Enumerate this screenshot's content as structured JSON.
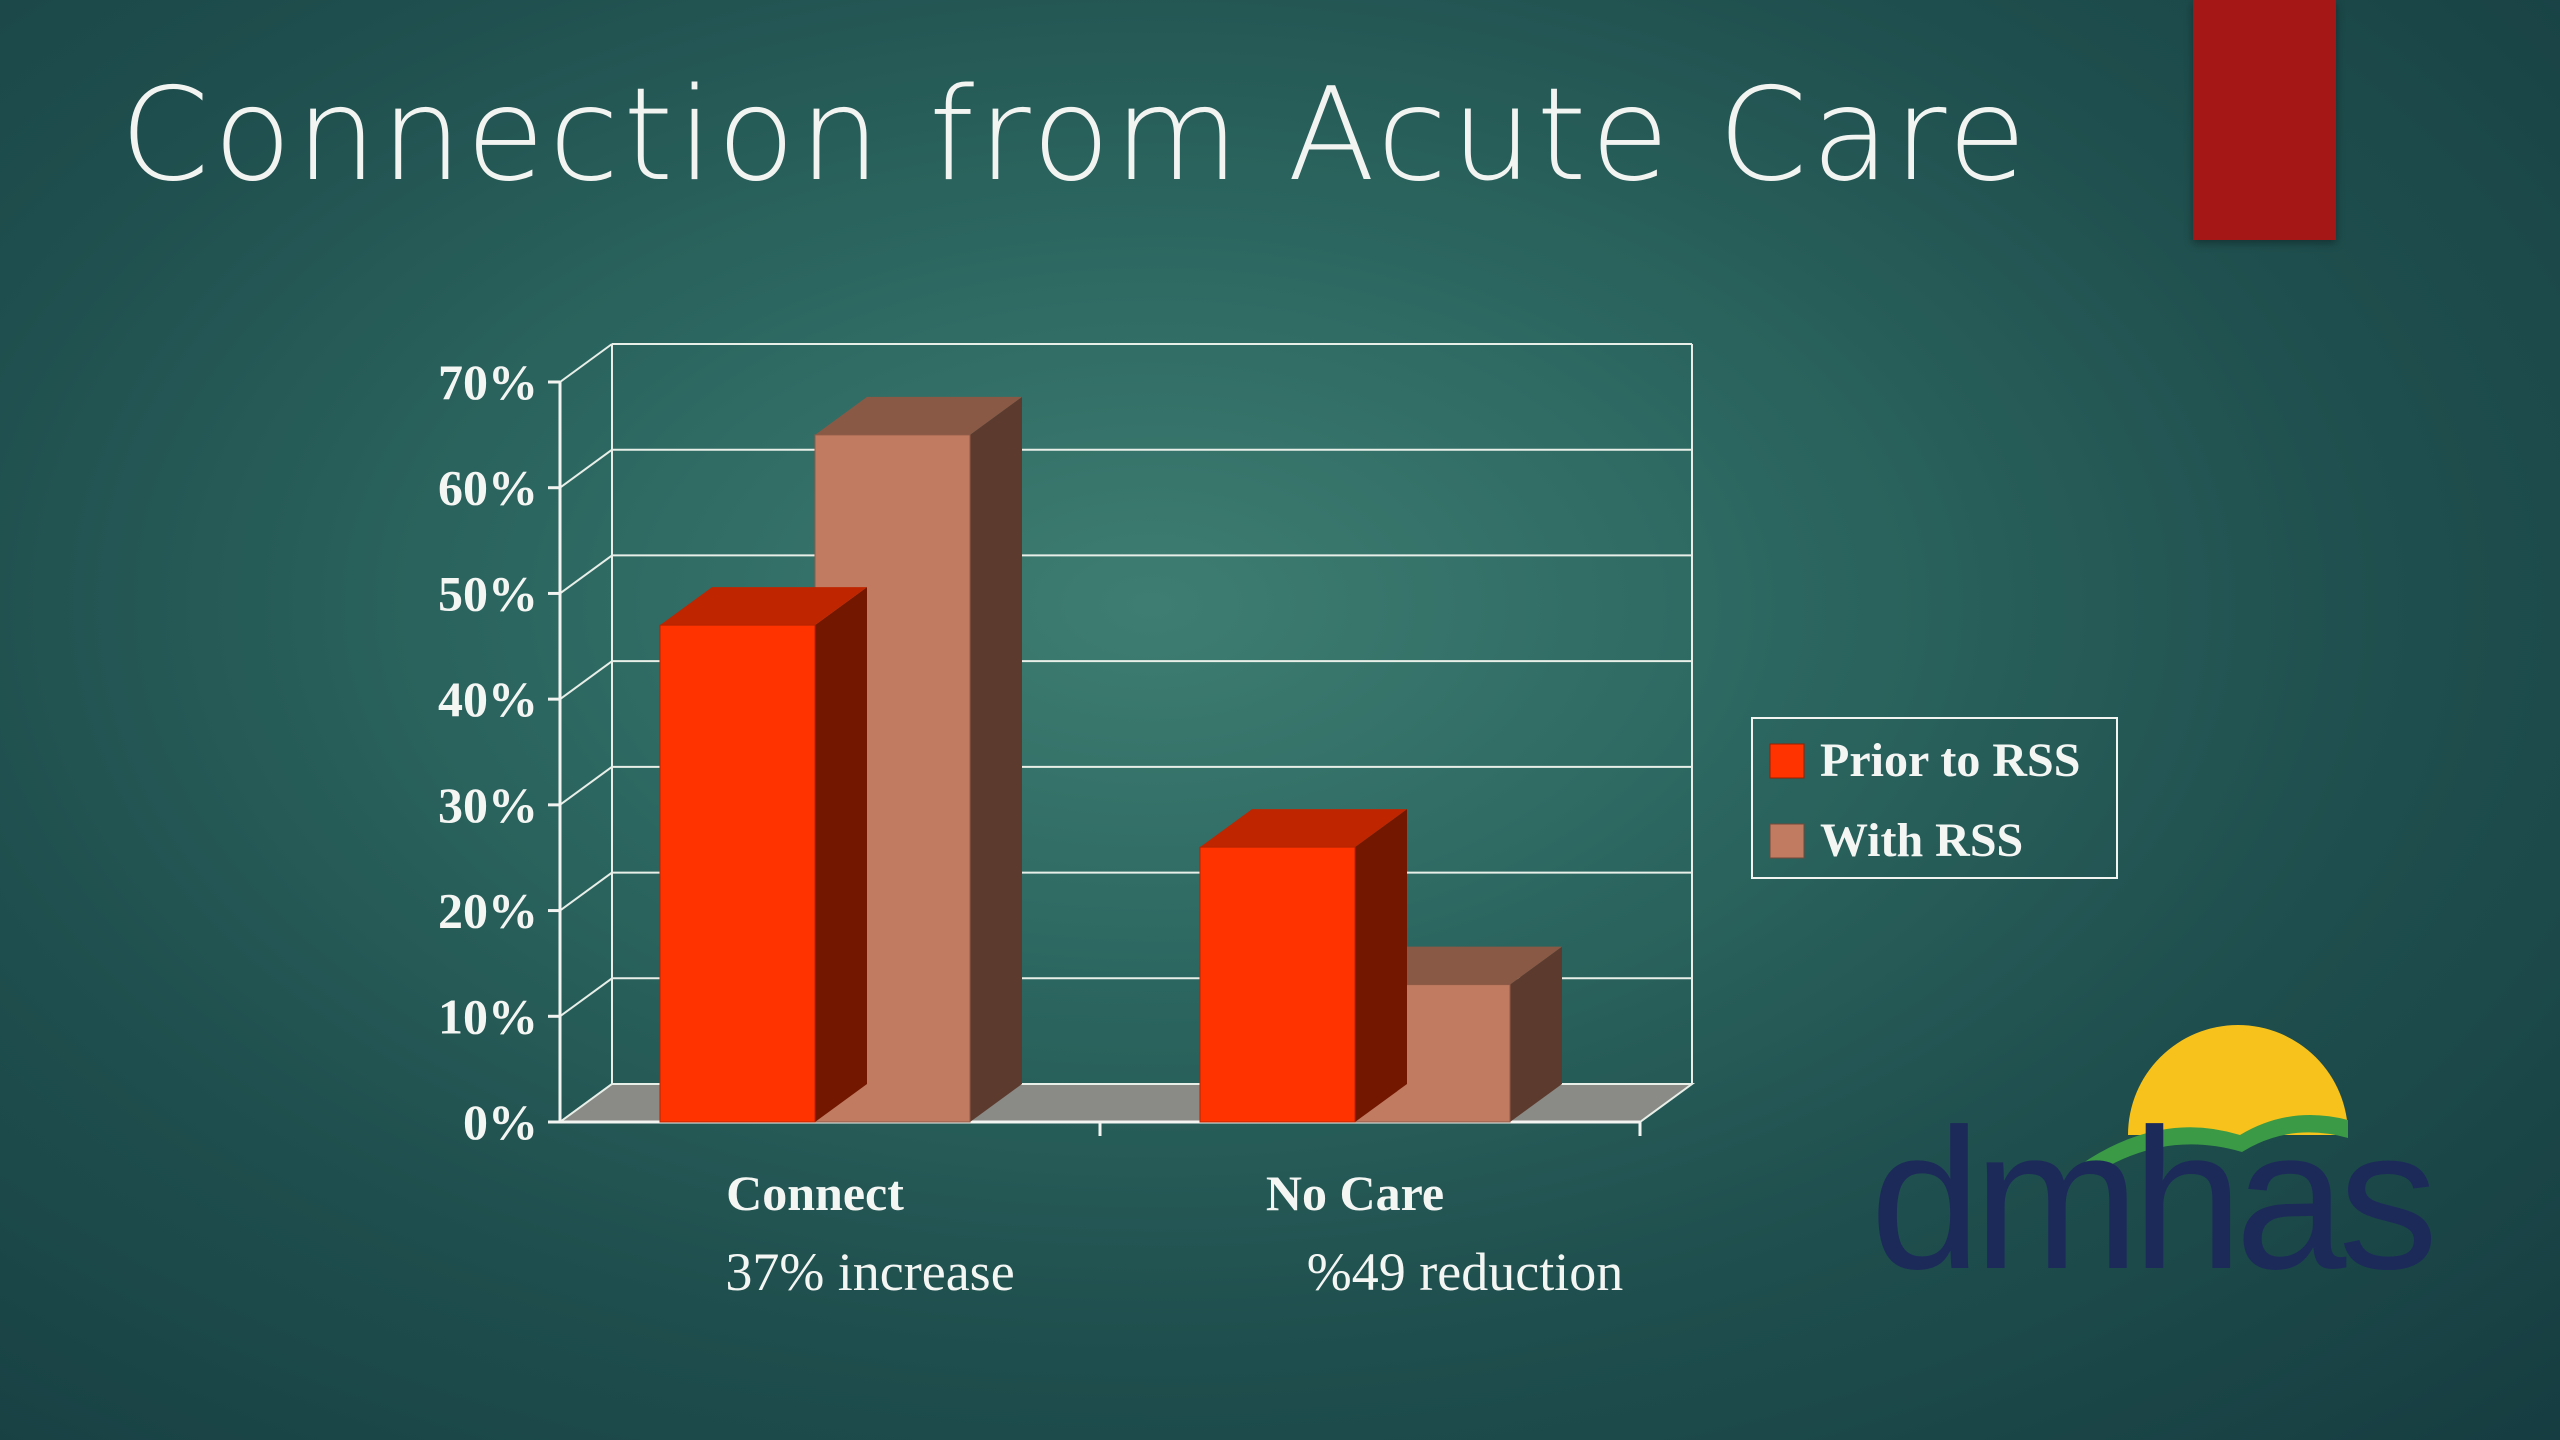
{
  "slide": {
    "title": "Connection from Acute Care"
  },
  "chart_data": {
    "type": "bar",
    "title": "",
    "xlabel": "",
    "ylabel": "",
    "categories": [
      "Connect",
      "No Care"
    ],
    "category_notes": [
      "37% increase",
      "%49 reduction"
    ],
    "series": [
      {
        "name": "Prior to RSS",
        "values": [
          47,
          26
        ],
        "color": "#ff3300"
      },
      {
        "name": "With RSS",
        "values": [
          65,
          13
        ],
        "color": "#c07b60"
      }
    ],
    "ylim": [
      0,
      70
    ],
    "yticks": [
      "0%",
      "10%",
      "20%",
      "30%",
      "40%",
      "50%",
      "60%",
      "70%"
    ],
    "grid": true,
    "three_d": true,
    "legend_position": "right"
  },
  "logo": {
    "text": "dmhas",
    "sun_color": "#f7c21b",
    "leaf_color": "#3b9a45",
    "text_color": "#1c2a5a"
  },
  "colors": {
    "accent_bar": "#a51616"
  }
}
